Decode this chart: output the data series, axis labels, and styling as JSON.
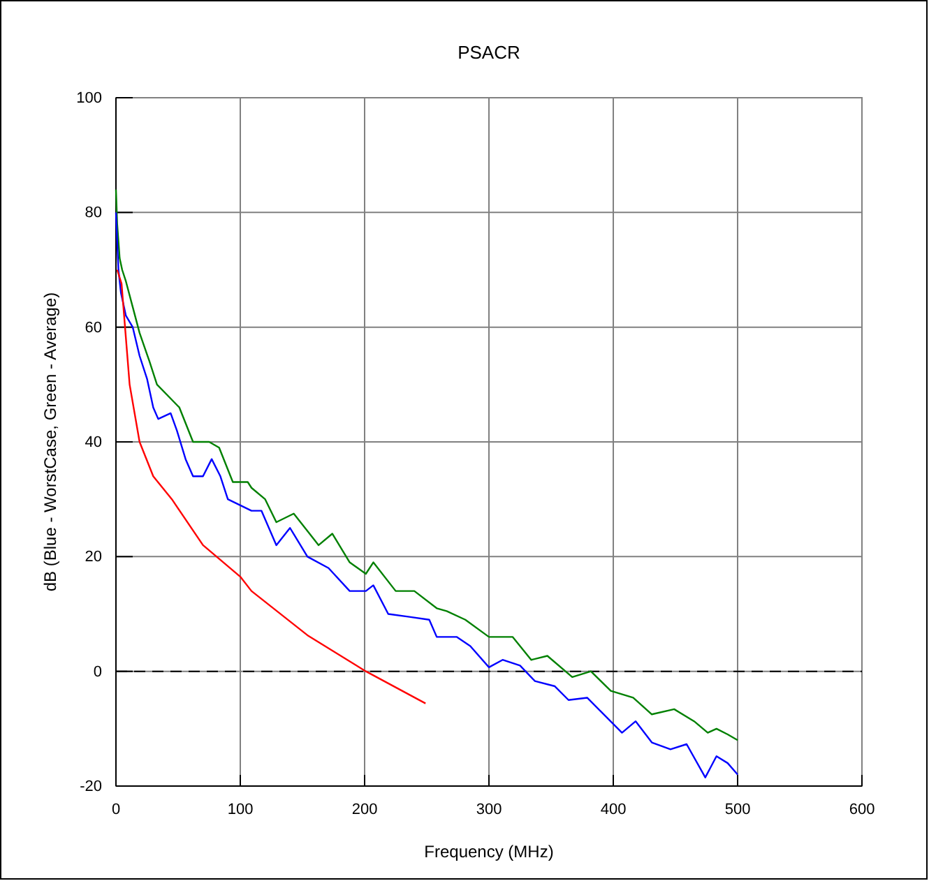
{
  "chart_data": {
    "type": "line",
    "title": "PSACR",
    "xlabel": "Frequency (MHz)",
    "ylabel": "dB (Blue - WorstCase, Green - Average)",
    "xlim": [
      0,
      600
    ],
    "ylim": [
      -20,
      100
    ],
    "xticks": [
      0,
      100,
      200,
      300,
      400,
      500,
      600
    ],
    "yticks": [
      -20,
      0,
      20,
      40,
      60,
      80,
      100
    ],
    "grid": true,
    "line_style": "solid",
    "marker": "none",
    "ref_lines": [
      {
        "axis": "y",
        "value": 0,
        "color": "#000000",
        "line_style": "dashed"
      }
    ],
    "series": [
      {
        "color": "#008000",
        "x": [
          0,
          1,
          3,
          5,
          8,
          13.5,
          19,
          27,
          33,
          42,
          51,
          62,
          75,
          83,
          94,
          106,
          109,
          120,
          129,
          143,
          163,
          174,
          188,
          201,
          207,
          225,
          240,
          258,
          266,
          281,
          300,
          319,
          334,
          347,
          367,
          382,
          398,
          416,
          431,
          449,
          465,
          476,
          483,
          492,
          500
        ],
        "values": [
          84,
          78,
          72,
          70,
          68,
          63.5,
          59,
          54,
          50,
          48,
          46,
          40,
          40,
          39,
          33,
          33,
          32,
          30,
          26,
          27.5,
          22,
          24,
          19,
          17,
          19,
          14,
          14,
          11,
          10.5,
          9,
          6,
          6,
          2,
          2.7,
          -1,
          0,
          -3.4,
          -4.6,
          -7.5,
          -6.6,
          -8.7,
          -10.7,
          -10,
          -11,
          -12
        ]
      },
      {
        "color": "#0000ff",
        "x": [
          0,
          2,
          4,
          8,
          13.5,
          19,
          25,
          30,
          34,
          44,
          49,
          56,
          62,
          70,
          77,
          84,
          90,
          109,
          117,
          129,
          140,
          154,
          171,
          188,
          201,
          207,
          219,
          236,
          252,
          258,
          274,
          285,
          300,
          311,
          325,
          337,
          353,
          364,
          379,
          390,
          407,
          418,
          431,
          446,
          459,
          474,
          483,
          492,
          500
        ],
        "values": [
          80,
          70,
          66,
          62,
          60,
          55,
          51,
          46,
          44,
          45,
          42,
          37,
          34,
          34,
          37,
          34,
          30,
          28,
          28,
          22,
          25,
          20,
          18,
          14,
          14,
          15,
          10,
          9.5,
          9,
          6,
          6,
          4.4,
          0.7,
          2,
          1,
          -1.7,
          -2.6,
          -5,
          -4.6,
          -7,
          -10.7,
          -8.7,
          -12.4,
          -13.6,
          -12.7,
          -18.5,
          -14.8,
          -16,
          -18
        ]
      },
      {
        "color": "#ff0000",
        "x": [
          1,
          4.5,
          11,
          19,
          30,
          45,
          70,
          100,
          109,
          154,
          201,
          249
        ],
        "values": [
          70,
          67.6,
          50,
          40,
          34,
          30,
          22,
          16.5,
          14,
          6.3,
          0,
          -5.6
        ]
      }
    ]
  }
}
